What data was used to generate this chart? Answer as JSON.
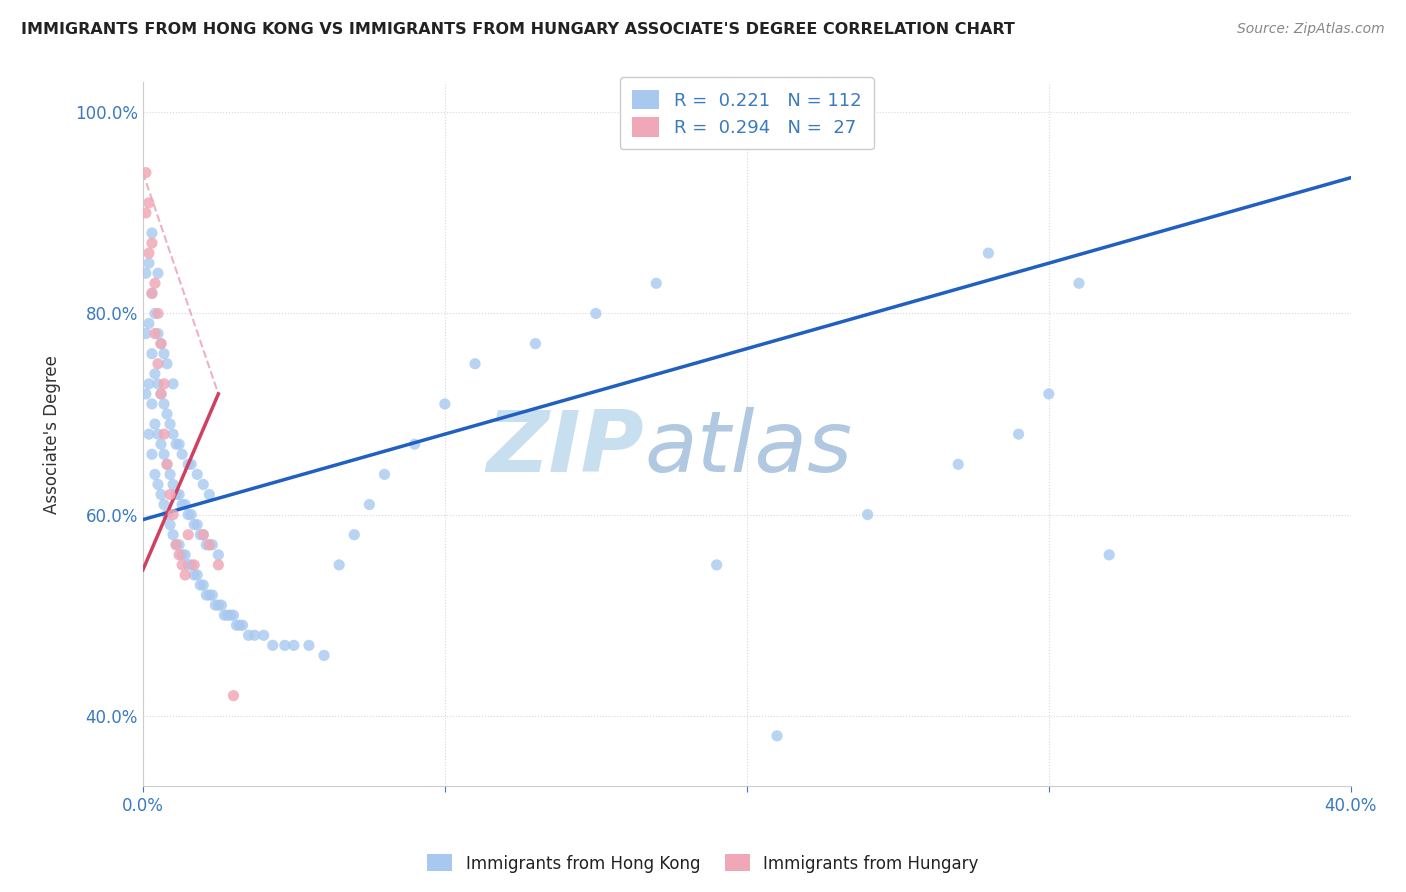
{
  "title": "IMMIGRANTS FROM HONG KONG VS IMMIGRANTS FROM HUNGARY ASSOCIATE'S DEGREE CORRELATION CHART",
  "source": "Source: ZipAtlas.com",
  "ylabel": "Associate's Degree",
  "legend1_label": "R =  0.221   N = 112",
  "legend2_label": "R =  0.294   N =  27",
  "legend_bottom1": "Immigrants from Hong Kong",
  "legend_bottom2": "Immigrants from Hungary",
  "hk_color": "#a8c8f0",
  "hu_color": "#f0a8b8",
  "hk_line_color": "#2060c0",
  "hu_line_color": "#d04060",
  "ref_line_color": "#e0b0b8",
  "watermark_zip": "ZIP",
  "watermark_atlas": "atlas",
  "watermark_color_zip": "#c8dff0",
  "watermark_color_atlas": "#b8cce0",
  "R_hk": 0.221,
  "N_hk": 112,
  "R_hu": 0.294,
  "N_hu": 27,
  "xlim": [
    0.0,
    0.4
  ],
  "ylim": [
    0.33,
    1.03
  ],
  "hk_x": [
    0.001,
    0.001,
    0.001,
    0.002,
    0.002,
    0.002,
    0.002,
    0.003,
    0.003,
    0.003,
    0.003,
    0.003,
    0.004,
    0.004,
    0.004,
    0.004,
    0.005,
    0.005,
    0.005,
    0.005,
    0.005,
    0.006,
    0.006,
    0.006,
    0.006,
    0.007,
    0.007,
    0.007,
    0.007,
    0.008,
    0.008,
    0.008,
    0.008,
    0.009,
    0.009,
    0.009,
    0.01,
    0.01,
    0.01,
    0.01,
    0.011,
    0.011,
    0.011,
    0.012,
    0.012,
    0.012,
    0.013,
    0.013,
    0.013,
    0.014,
    0.014,
    0.015,
    0.015,
    0.015,
    0.016,
    0.016,
    0.016,
    0.017,
    0.017,
    0.018,
    0.018,
    0.018,
    0.019,
    0.019,
    0.02,
    0.02,
    0.02,
    0.021,
    0.021,
    0.022,
    0.022,
    0.022,
    0.023,
    0.023,
    0.024,
    0.025,
    0.025,
    0.026,
    0.027,
    0.028,
    0.029,
    0.03,
    0.031,
    0.032,
    0.033,
    0.035,
    0.037,
    0.04,
    0.043,
    0.047,
    0.05,
    0.055,
    0.06,
    0.065,
    0.07,
    0.075,
    0.08,
    0.09,
    0.1,
    0.11,
    0.13,
    0.15,
    0.17,
    0.19,
    0.21,
    0.24,
    0.27,
    0.29,
    0.3,
    0.31,
    0.32,
    0.28
  ],
  "hk_y": [
    0.72,
    0.78,
    0.84,
    0.68,
    0.73,
    0.79,
    0.85,
    0.66,
    0.71,
    0.76,
    0.82,
    0.88,
    0.64,
    0.69,
    0.74,
    0.8,
    0.63,
    0.68,
    0.73,
    0.78,
    0.84,
    0.62,
    0.67,
    0.72,
    0.77,
    0.61,
    0.66,
    0.71,
    0.76,
    0.6,
    0.65,
    0.7,
    0.75,
    0.59,
    0.64,
    0.69,
    0.58,
    0.63,
    0.68,
    0.73,
    0.57,
    0.62,
    0.67,
    0.57,
    0.62,
    0.67,
    0.56,
    0.61,
    0.66,
    0.56,
    0.61,
    0.55,
    0.6,
    0.65,
    0.55,
    0.6,
    0.65,
    0.54,
    0.59,
    0.54,
    0.59,
    0.64,
    0.53,
    0.58,
    0.53,
    0.58,
    0.63,
    0.52,
    0.57,
    0.52,
    0.57,
    0.62,
    0.52,
    0.57,
    0.51,
    0.51,
    0.56,
    0.51,
    0.5,
    0.5,
    0.5,
    0.5,
    0.49,
    0.49,
    0.49,
    0.48,
    0.48,
    0.48,
    0.47,
    0.47,
    0.47,
    0.47,
    0.46,
    0.55,
    0.58,
    0.61,
    0.64,
    0.67,
    0.71,
    0.75,
    0.77,
    0.8,
    0.83,
    0.55,
    0.38,
    0.6,
    0.65,
    0.68,
    0.72,
    0.83,
    0.56,
    0.86
  ],
  "hu_x": [
    0.001,
    0.001,
    0.002,
    0.002,
    0.003,
    0.003,
    0.004,
    0.004,
    0.005,
    0.005,
    0.006,
    0.006,
    0.007,
    0.007,
    0.008,
    0.009,
    0.01,
    0.011,
    0.012,
    0.013,
    0.014,
    0.015,
    0.017,
    0.02,
    0.022,
    0.025,
    0.03
  ],
  "hu_y": [
    0.9,
    0.94,
    0.86,
    0.91,
    0.82,
    0.87,
    0.78,
    0.83,
    0.75,
    0.8,
    0.72,
    0.77,
    0.68,
    0.73,
    0.65,
    0.62,
    0.6,
    0.57,
    0.56,
    0.55,
    0.54,
    0.58,
    0.55,
    0.58,
    0.57,
    0.55,
    0.42
  ],
  "hk_line_x": [
    0.0,
    0.4
  ],
  "hk_line_y": [
    0.595,
    0.935
  ],
  "hu_line_x": [
    0.0,
    0.025
  ],
  "hu_line_y": [
    0.545,
    0.72
  ],
  "ref_line_x": [
    0.0,
    0.025
  ],
  "ref_line_y": [
    0.94,
    0.72
  ]
}
